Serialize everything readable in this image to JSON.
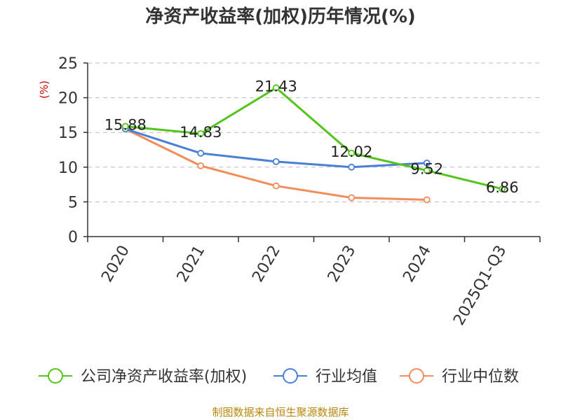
{
  "chart_data": {
    "type": "line",
    "title": "净资产收益率(加权)历年情况(%)",
    "ylabel": "(%)",
    "xlabel": "",
    "ylim": [
      0,
      25
    ],
    "yticks": [
      0,
      5,
      10,
      15,
      20,
      25
    ],
    "grid": true,
    "categories": [
      "2020",
      "2021",
      "2022",
      "2023",
      "2024",
      "2025Q1-Q3"
    ],
    "series": [
      {
        "name": "公司净资产收益率(加权)",
        "color": "#52c41a",
        "values": [
          15.88,
          14.83,
          21.43,
          12.02,
          9.52,
          6.86
        ],
        "labels": [
          "15.88",
          "14.83",
          "21.43",
          "12.02",
          "9.52",
          "6.86"
        ]
      },
      {
        "name": "行业均值",
        "color": "#4a7fd6",
        "values": [
          15.5,
          12.0,
          10.8,
          10.0,
          10.6,
          null
        ]
      },
      {
        "name": "行业中位数",
        "color": "#f28c5a",
        "values": [
          15.5,
          10.2,
          7.3,
          5.6,
          5.3,
          null
        ]
      }
    ],
    "legend_position": "bottom"
  },
  "source": "制图数据来自恒生聚源数据库"
}
